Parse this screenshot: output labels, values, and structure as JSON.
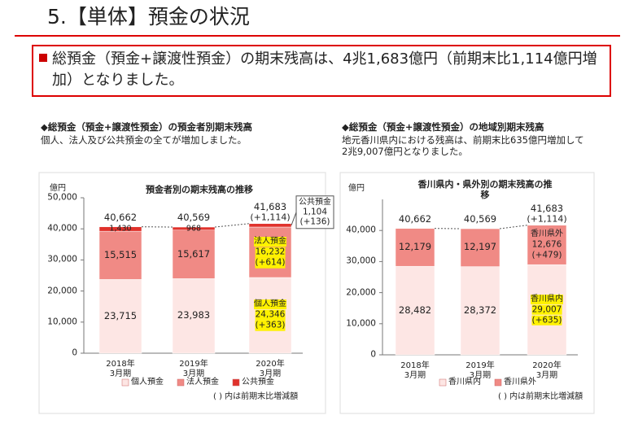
{
  "header": {
    "title": "5.【単体】預金の状況"
  },
  "summary": "総預金（預金+譲渡性預金）の期末残高は、4兆1,683億円（前期末比1,114億円増加）となりました。",
  "chart_data": [
    {
      "type": "bar",
      "stacked": true,
      "heading": "◆総預金（預金+譲渡性預金）の預金者別期末残高",
      "description": "個人、法人及び公共預金の全てが増加しました。",
      "title": "預金者別の期末残高の推移",
      "y_unit": "億円",
      "categories": [
        "2018年\n3月期",
        "2019年\n3月期",
        "2020年\n3月期"
      ],
      "series": [
        {
          "name": "個人預金",
          "color": "#fde6e4",
          "values": [
            23715,
            23983,
            24346
          ],
          "value_labels": [
            "23,715",
            "23,983",
            "24,346"
          ],
          "change_labels": [
            null,
            null,
            "(+363)"
          ],
          "highlight": true,
          "callout": "inside"
        },
        {
          "name": "法人預金",
          "color": "#f08a85",
          "values": [
            15515,
            15617,
            16232
          ],
          "value_labels": [
            "15,515",
            "15,617",
            "16,232"
          ],
          "change_labels": [
            null,
            null,
            "(+614)"
          ],
          "highlight": true,
          "callout": "inside"
        },
        {
          "name": "公共預金",
          "color": "#e0322c",
          "values": [
            1430,
            968,
            1104
          ],
          "value_labels": [
            "1,430",
            "968",
            "1,104"
          ],
          "change_labels": [
            null,
            null,
            "(+136)"
          ],
          "highlight": false,
          "callout": "box"
        }
      ],
      "totals": [
        40662,
        40569,
        41683
      ],
      "total_labels": [
        "40,662",
        "40,569",
        "41,683"
      ],
      "total_change_labels": [
        null,
        null,
        "(+1,114)"
      ],
      "ylim": [
        0,
        50000
      ],
      "yticks": [
        0,
        {
          "value": 10000,
          "label": "10,000"
        },
        {
          "value": 20000,
          "label": "20,000"
        },
        {
          "value": 30000,
          "label": "30,000"
        },
        {
          "value": 40000,
          "label": "40,000"
        },
        {
          "value": 50000,
          "label": "50,000"
        }
      ],
      "note": "( ) 内は前期末比増減額"
    },
    {
      "type": "bar",
      "stacked": true,
      "heading": "◆総預金（預金+譲渡性預金）の地域別期末残高",
      "description": "地元香川県内における残高は、前期末比635億円増加して2兆9,007億円となりました。",
      "title": "香川県内・県外別の期末残高の推移",
      "y_unit": "億円",
      "categories": [
        "2018年\n3月期",
        "2019年\n3月期",
        "2020年\n3月期"
      ],
      "series": [
        {
          "name": "香川県内",
          "color": "#fde6e4",
          "values": [
            28482,
            28372,
            29007
          ],
          "value_labels": [
            "28,482",
            "28,372",
            "29,007"
          ],
          "change_labels": [
            null,
            null,
            "(+635)"
          ],
          "highlight": true,
          "callout": "inside"
        },
        {
          "name": "香川県外",
          "color": "#f08a85",
          "values": [
            12179,
            12197,
            12676
          ],
          "value_labels": [
            "12,179",
            "12,197",
            "12,676"
          ],
          "change_labels": [
            null,
            null,
            "(+479)"
          ],
          "highlight": false,
          "callout": "inside"
        }
      ],
      "totals": [
        40662,
        40569,
        41683
      ],
      "total_labels": [
        "40,662",
        "40,569",
        "41,683"
      ],
      "total_change_labels": [
        null,
        null,
        "(+1,114)"
      ],
      "ylim": [
        0,
        50000
      ],
      "yticks": [
        0,
        {
          "value": 10000,
          "label": "10,000"
        },
        {
          "value": 20000,
          "label": "20,000"
        },
        {
          "value": 30000,
          "label": "30,000"
        },
        {
          "value": 40000,
          "label": "40,000"
        }
      ],
      "note": "( ) 内は前期末比増減額"
    }
  ]
}
